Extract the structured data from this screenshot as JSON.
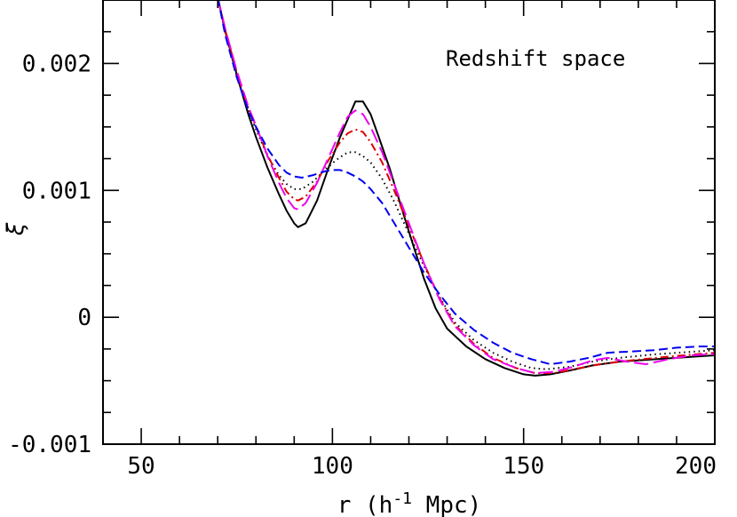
{
  "chart_data": {
    "type": "line",
    "annotation": "Redshift space",
    "xlabel": "r (h",
    "xlabel_sup": "-1",
    "xlabel_tail": " Mpc)",
    "ylabel": "ξ",
    "xlim": [
      40,
      200
    ],
    "ylim": [
      -0.001,
      0.0025
    ],
    "x_ticks": [
      {
        "value": 50,
        "label": "50"
      },
      {
        "value": 100,
        "label": "100"
      },
      {
        "value": 150,
        "label": "150"
      },
      {
        "value": 200,
        "label": "200"
      }
    ],
    "y_ticks": [
      {
        "value": -0.001,
        "label": "-0.001"
      },
      {
        "value": 0,
        "label": "0"
      },
      {
        "value": 0.001,
        "label": "0.001"
      },
      {
        "value": 0.002,
        "label": "0.002"
      }
    ],
    "x_minor_step": 10,
    "y_minor_step": 0.00025,
    "grid": false,
    "series": [
      {
        "color": "#000000",
        "dash": "",
        "points": [
          [
            70,
            0.00252
          ],
          [
            72,
            0.00225
          ],
          [
            75,
            0.00191
          ],
          [
            78,
            0.0016
          ],
          [
            80,
            0.00142
          ],
          [
            83,
            0.00118
          ],
          [
            86,
            0.00097
          ],
          [
            88,
            0.00084
          ],
          [
            90,
            0.00074
          ],
          [
            91,
            0.00071
          ],
          [
            93,
            0.00074
          ],
          [
            96,
            0.00092
          ],
          [
            99,
            0.00118
          ],
          [
            102,
            0.00142
          ],
          [
            104,
            0.00156
          ],
          [
            106,
            0.0017
          ],
          [
            108,
            0.0017
          ],
          [
            110,
            0.0016
          ],
          [
            112,
            0.00143
          ],
          [
            115,
            0.00117
          ],
          [
            118,
            0.00087
          ],
          [
            121,
            0.00058
          ],
          [
            124,
            0.0003
          ],
          [
            127,
            7e-05
          ],
          [
            130,
            -9e-05
          ],
          [
            135,
            -0.00023
          ],
          [
            140,
            -0.00033
          ],
          [
            145,
            -0.0004
          ],
          [
            150,
            -0.00045
          ],
          [
            153,
            -0.00046
          ],
          [
            157,
            -0.00045
          ],
          [
            162,
            -0.00042
          ],
          [
            168,
            -0.00038
          ],
          [
            175,
            -0.00035
          ],
          [
            185,
            -0.00033
          ],
          [
            195,
            -0.00031
          ],
          [
            200,
            -0.0003
          ]
        ]
      },
      {
        "color": "#000000",
        "dash": "1.5,4",
        "points": [
          [
            70,
            0.00252
          ],
          [
            72,
            0.00224
          ],
          [
            75,
            0.0019
          ],
          [
            78,
            0.00163
          ],
          [
            80,
            0.00148
          ],
          [
            83,
            0.00127
          ],
          [
            86,
            0.00112
          ],
          [
            88,
            0.00105
          ],
          [
            90,
            0.00101
          ],
          [
            92,
            0.00101
          ],
          [
            95,
            0.00107
          ],
          [
            98,
            0.00116
          ],
          [
            101,
            0.00124
          ],
          [
            104,
            0.0013
          ],
          [
            106,
            0.0013
          ],
          [
            108,
            0.00127
          ],
          [
            110,
            0.00122
          ],
          [
            113,
            0.00109
          ],
          [
            116,
            0.00092
          ],
          [
            120,
            0.00066
          ],
          [
            124,
            0.0004
          ],
          [
            128,
            0.00016
          ],
          [
            132,
            -4e-05
          ],
          [
            137,
            -0.00018
          ],
          [
            142,
            -0.00028
          ],
          [
            147,
            -0.00035
          ],
          [
            152,
            -0.0004
          ],
          [
            156,
            -0.00041
          ],
          [
            162,
            -0.00039
          ],
          [
            168,
            -0.00035
          ],
          [
            175,
            -0.00032
          ],
          [
            185,
            -0.00029
          ],
          [
            195,
            -0.00027
          ],
          [
            200,
            -0.00026
          ]
        ]
      },
      {
        "color": "#dd0000",
        "dash": "9,4,2,4",
        "points": [
          [
            70,
            0.00252
          ],
          [
            72,
            0.00226
          ],
          [
            75,
            0.00193
          ],
          [
            78,
            0.00165
          ],
          [
            80,
            0.0015
          ],
          [
            83,
            0.00128
          ],
          [
            86,
            0.0011
          ],
          [
            88,
            0.00099
          ],
          [
            90,
            0.00093
          ],
          [
            91,
            0.00092
          ],
          [
            93,
            0.00095
          ],
          [
            96,
            0.00107
          ],
          [
            99,
            0.00124
          ],
          [
            102,
            0.00138
          ],
          [
            104,
            0.00145
          ],
          [
            106,
            0.00148
          ],
          [
            108,
            0.00146
          ],
          [
            110,
            0.00138
          ],
          [
            113,
            0.00122
          ],
          [
            116,
            0.00101
          ],
          [
            120,
            0.00072
          ],
          [
            124,
            0.00042
          ],
          [
            128,
            0.00015
          ],
          [
            132,
            -6e-05
          ],
          [
            137,
            -0.00021
          ],
          [
            142,
            -0.00032
          ],
          [
            148,
            -0.0004
          ],
          [
            153,
            -0.00044
          ],
          [
            158,
            -0.00044
          ],
          [
            163,
            -0.00041
          ],
          [
            170,
            -0.00037
          ],
          [
            178,
            -0.00034
          ],
          [
            188,
            -0.00031
          ],
          [
            200,
            -0.00028
          ]
        ]
      },
      {
        "color": "#ee00ee",
        "dash": "16,6",
        "points": [
          [
            70,
            0.00252
          ],
          [
            72,
            0.00227
          ],
          [
            75,
            0.00194
          ],
          [
            78,
            0.00166
          ],
          [
            80,
            0.00151
          ],
          [
            83,
            0.00127
          ],
          [
            86,
            0.00106
          ],
          [
            88,
            0.00094
          ],
          [
            90,
            0.00086
          ],
          [
            91,
            0.00085
          ],
          [
            93,
            0.0009
          ],
          [
            96,
            0.00106
          ],
          [
            99,
            0.00126
          ],
          [
            102,
            0.00146
          ],
          [
            104,
            0.00158
          ],
          [
            106,
            0.00163
          ],
          [
            108,
            0.0016
          ],
          [
            110,
            0.0015
          ],
          [
            113,
            0.0013
          ],
          [
            116,
            0.00106
          ],
          [
            120,
            0.00074
          ],
          [
            124,
            0.00042
          ],
          [
            128,
            0.00014
          ],
          [
            132,
            -7e-05
          ],
          [
            137,
            -0.00022
          ],
          [
            142,
            -0.00033
          ],
          [
            148,
            -0.0004
          ],
          [
            153,
            -0.00044
          ],
          [
            158,
            -0.00043
          ],
          [
            163,
            -0.00039
          ],
          [
            168,
            -0.00034
          ],
          [
            172,
            -0.00032
          ],
          [
            177,
            -0.00035
          ],
          [
            182,
            -0.00037
          ],
          [
            188,
            -0.00033
          ],
          [
            194,
            -0.0003
          ],
          [
            200,
            -0.00029
          ]
        ]
      },
      {
        "color": "#0000ee",
        "dash": "10,5",
        "points": [
          [
            70,
            0.00252
          ],
          [
            72,
            0.00222
          ],
          [
            75,
            0.00189
          ],
          [
            78,
            0.00163
          ],
          [
            80,
            0.0015
          ],
          [
            83,
            0.00133
          ],
          [
            86,
            0.0012
          ],
          [
            88,
            0.00114
          ],
          [
            90,
            0.00111
          ],
          [
            92,
            0.0011
          ],
          [
            95,
            0.00112
          ],
          [
            98,
            0.00115
          ],
          [
            100,
            0.00116
          ],
          [
            102,
            0.00116
          ],
          [
            104,
            0.00114
          ],
          [
            106,
            0.00111
          ],
          [
            108,
            0.00107
          ],
          [
            110,
            0.00101
          ],
          [
            113,
            0.0009
          ],
          [
            116,
            0.00075
          ],
          [
            120,
            0.00055
          ],
          [
            124,
            0.00035
          ],
          [
            128,
            0.00018
          ],
          [
            132,
            3e-05
          ],
          [
            137,
            -0.0001
          ],
          [
            142,
            -0.0002
          ],
          [
            147,
            -0.00028
          ],
          [
            152,
            -0.00033
          ],
          [
            157,
            -0.00037
          ],
          [
            162,
            -0.00035
          ],
          [
            167,
            -0.00032
          ],
          [
            172,
            -0.00028
          ],
          [
            178,
            -0.00027
          ],
          [
            184,
            -0.00026
          ],
          [
            190,
            -0.00024
          ],
          [
            196,
            -0.00023
          ],
          [
            200,
            -0.00023
          ]
        ]
      }
    ]
  }
}
